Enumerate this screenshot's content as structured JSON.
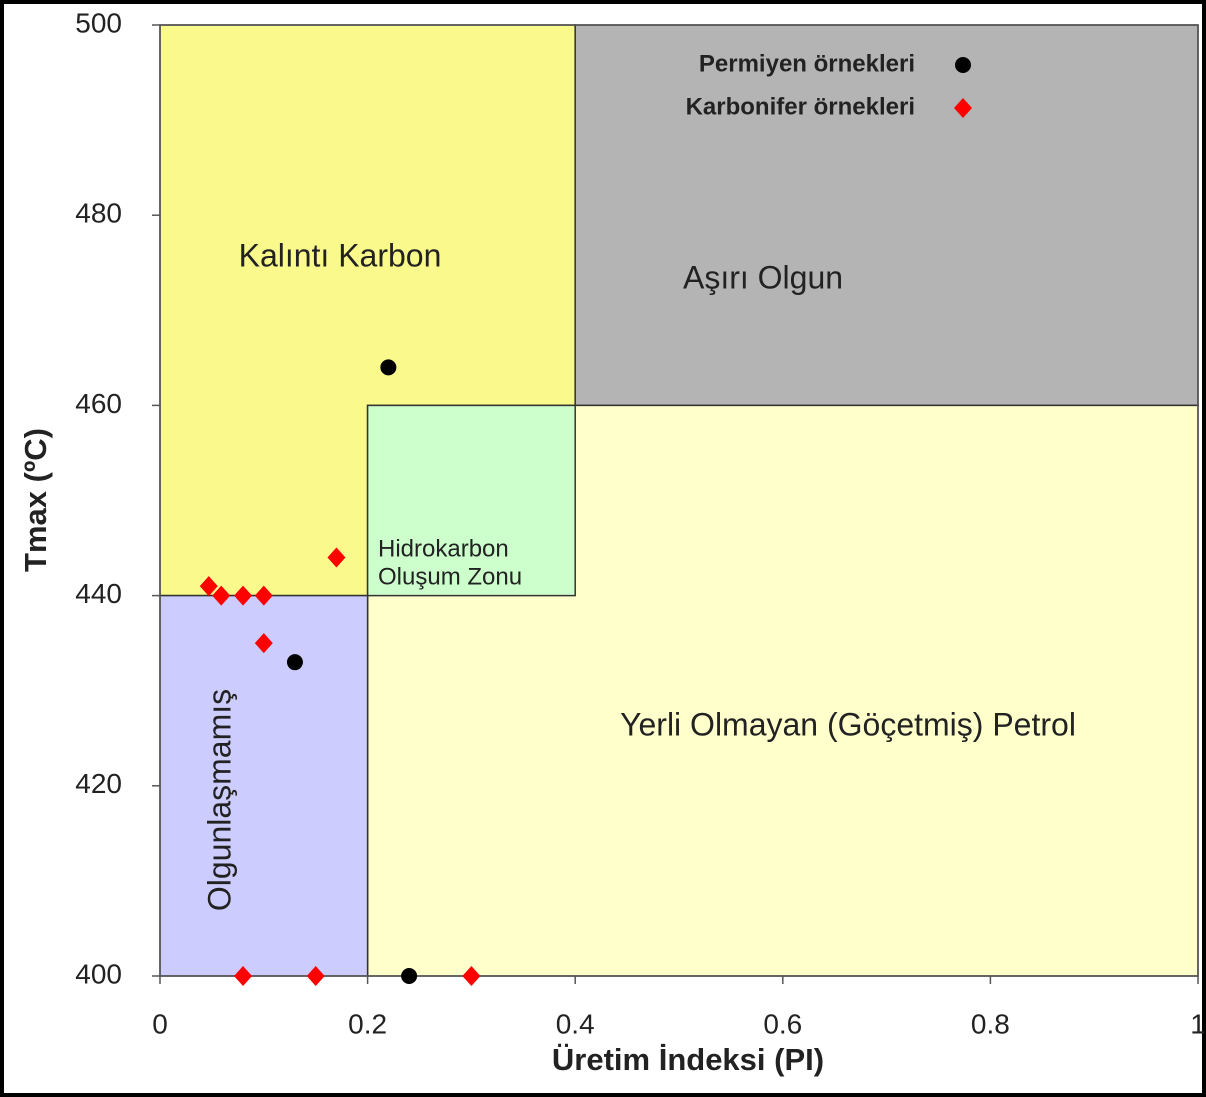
{
  "chart_data": {
    "type": "scatter",
    "xlabel": "Üretim İndeksi (PI)",
    "ylabel": "Tmax (ºC)",
    "xlim": [
      0,
      1
    ],
    "ylim": [
      400,
      500
    ],
    "xticks": [
      0,
      0.2,
      0.4,
      0.6,
      0.8,
      1
    ],
    "yticks": [
      400,
      420,
      440,
      460,
      480,
      500
    ],
    "legend": "upper right",
    "regions": [
      {
        "label": "Kalıntı Karbon",
        "x": [
          0,
          0.4
        ],
        "y": [
          440,
          500
        ],
        "color": "#fafa8c"
      },
      {
        "label": "Aşırı Olgun",
        "x": [
          0.4,
          1
        ],
        "y": [
          460,
          500
        ],
        "color": "#b4b4b4"
      },
      {
        "label": "Yerli Olmayan (Göçetmiş) Petrol",
        "x": [
          0.2,
          1
        ],
        "y": [
          400,
          460
        ],
        "color": "#ffffcc"
      },
      {
        "label": [
          "Hidrokarbon",
          "Oluşum Zonu"
        ],
        "x": [
          0.2,
          0.4
        ],
        "y": [
          440,
          460
        ],
        "color": "#ccffcc"
      },
      {
        "label": "Olgunlaşmamış",
        "x": [
          0,
          0.2
        ],
        "y": [
          400,
          440
        ],
        "color": "#ccccff"
      }
    ],
    "series": [
      {
        "name": "Permiyen örnekleri",
        "color": "#000000",
        "marker": "circle",
        "x": [
          0.22,
          0.13,
          0.24
        ],
        "values": [
          464,
          433,
          400
        ]
      },
      {
        "name": "Karbonifer örnekleri",
        "color": "#ff0000",
        "marker": "diamond",
        "x": [
          0.047,
          0.059,
          0.08,
          0.1,
          0.17,
          0.1,
          0.08,
          0.15,
          0.3
        ],
        "values": [
          441,
          440,
          440,
          440,
          444,
          435,
          400,
          400,
          400
        ]
      }
    ]
  }
}
